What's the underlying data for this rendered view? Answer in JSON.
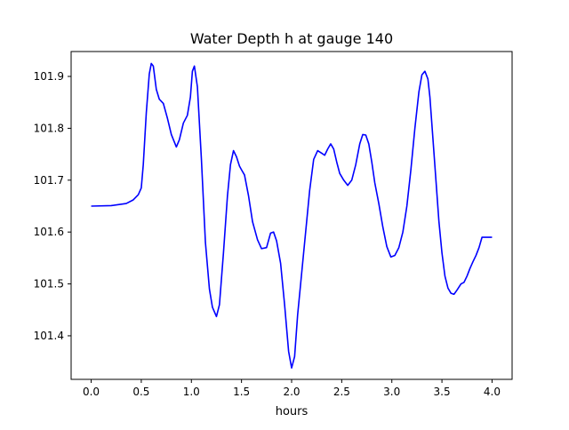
{
  "chart_data": {
    "type": "line",
    "title": "Water Depth h at gauge 140",
    "xlabel": "hours",
    "ylabel": "",
    "xlim": [
      -0.2,
      4.2
    ],
    "ylim": [
      101.316,
      101.948
    ],
    "xticks": [
      0.0,
      0.5,
      1.0,
      1.5,
      2.0,
      2.5,
      3.0,
      3.5,
      4.0
    ],
    "xtick_labels": [
      "0.0",
      "0.5",
      "1.0",
      "1.5",
      "2.0",
      "2.5",
      "3.0",
      "3.5",
      "4.0"
    ],
    "yticks": [
      101.4,
      101.5,
      101.6,
      101.7,
      101.8,
      101.9
    ],
    "ytick_labels": [
      "101.4",
      "101.5",
      "101.6",
      "101.7",
      "101.8",
      "101.9"
    ],
    "grid": false,
    "series": [
      {
        "color": "#0000ff",
        "x": [
          0.0,
          0.2,
          0.35,
          0.42,
          0.47,
          0.5,
          0.52,
          0.55,
          0.58,
          0.6,
          0.62,
          0.65,
          0.68,
          0.72,
          0.76,
          0.8,
          0.85,
          0.88,
          0.92,
          0.96,
          0.99,
          1.01,
          1.03,
          1.06,
          1.1,
          1.14,
          1.18,
          1.21,
          1.25,
          1.28,
          1.32,
          1.36,
          1.39,
          1.42,
          1.45,
          1.48,
          1.5,
          1.53,
          1.57,
          1.61,
          1.66,
          1.7,
          1.75,
          1.79,
          1.82,
          1.85,
          1.89,
          1.93,
          1.97,
          2.0,
          2.03,
          2.06,
          2.1,
          2.14,
          2.18,
          2.22,
          2.26,
          2.3,
          2.33,
          2.36,
          2.39,
          2.42,
          2.45,
          2.48,
          2.52,
          2.56,
          2.6,
          2.64,
          2.68,
          2.71,
          2.74,
          2.77,
          2.8,
          2.83,
          2.87,
          2.91,
          2.95,
          2.99,
          3.03,
          3.07,
          3.11,
          3.15,
          3.19,
          3.23,
          3.27,
          3.3,
          3.33,
          3.36,
          3.38,
          3.41,
          3.44,
          3.47,
          3.5,
          3.53,
          3.56,
          3.59,
          3.62,
          3.65,
          3.69,
          3.72,
          3.75,
          3.78,
          3.81,
          3.84,
          3.87,
          3.9,
          3.93,
          3.96,
          3.98,
          4.0
        ],
        "y": [
          101.65,
          101.651,
          101.655,
          101.662,
          101.672,
          101.685,
          101.73,
          101.83,
          101.905,
          101.925,
          101.92,
          101.875,
          101.856,
          101.848,
          101.82,
          101.788,
          101.764,
          101.778,
          101.81,
          101.825,
          101.86,
          101.91,
          101.92,
          101.88,
          101.74,
          101.58,
          101.49,
          101.455,
          101.437,
          101.46,
          101.56,
          101.67,
          101.73,
          101.757,
          101.745,
          101.727,
          101.72,
          101.71,
          101.67,
          101.62,
          101.585,
          101.568,
          101.57,
          101.598,
          101.6,
          101.583,
          101.54,
          101.46,
          101.37,
          101.338,
          101.36,
          101.44,
          101.52,
          101.6,
          101.68,
          101.74,
          101.757,
          101.752,
          101.748,
          101.76,
          101.77,
          101.76,
          101.735,
          101.713,
          101.7,
          101.69,
          101.7,
          101.73,
          101.77,
          101.788,
          101.787,
          101.77,
          101.735,
          101.695,
          101.655,
          101.61,
          101.572,
          101.552,
          101.555,
          101.57,
          101.6,
          101.65,
          101.72,
          101.8,
          101.87,
          101.903,
          101.91,
          101.895,
          101.86,
          101.78,
          101.7,
          101.62,
          101.56,
          101.515,
          101.492,
          101.482,
          101.48,
          101.488,
          101.5,
          101.503,
          101.515,
          101.53,
          101.543,
          101.555,
          101.57,
          101.59,
          101.59,
          101.59,
          101.59,
          101.59
        ]
      }
    ]
  }
}
